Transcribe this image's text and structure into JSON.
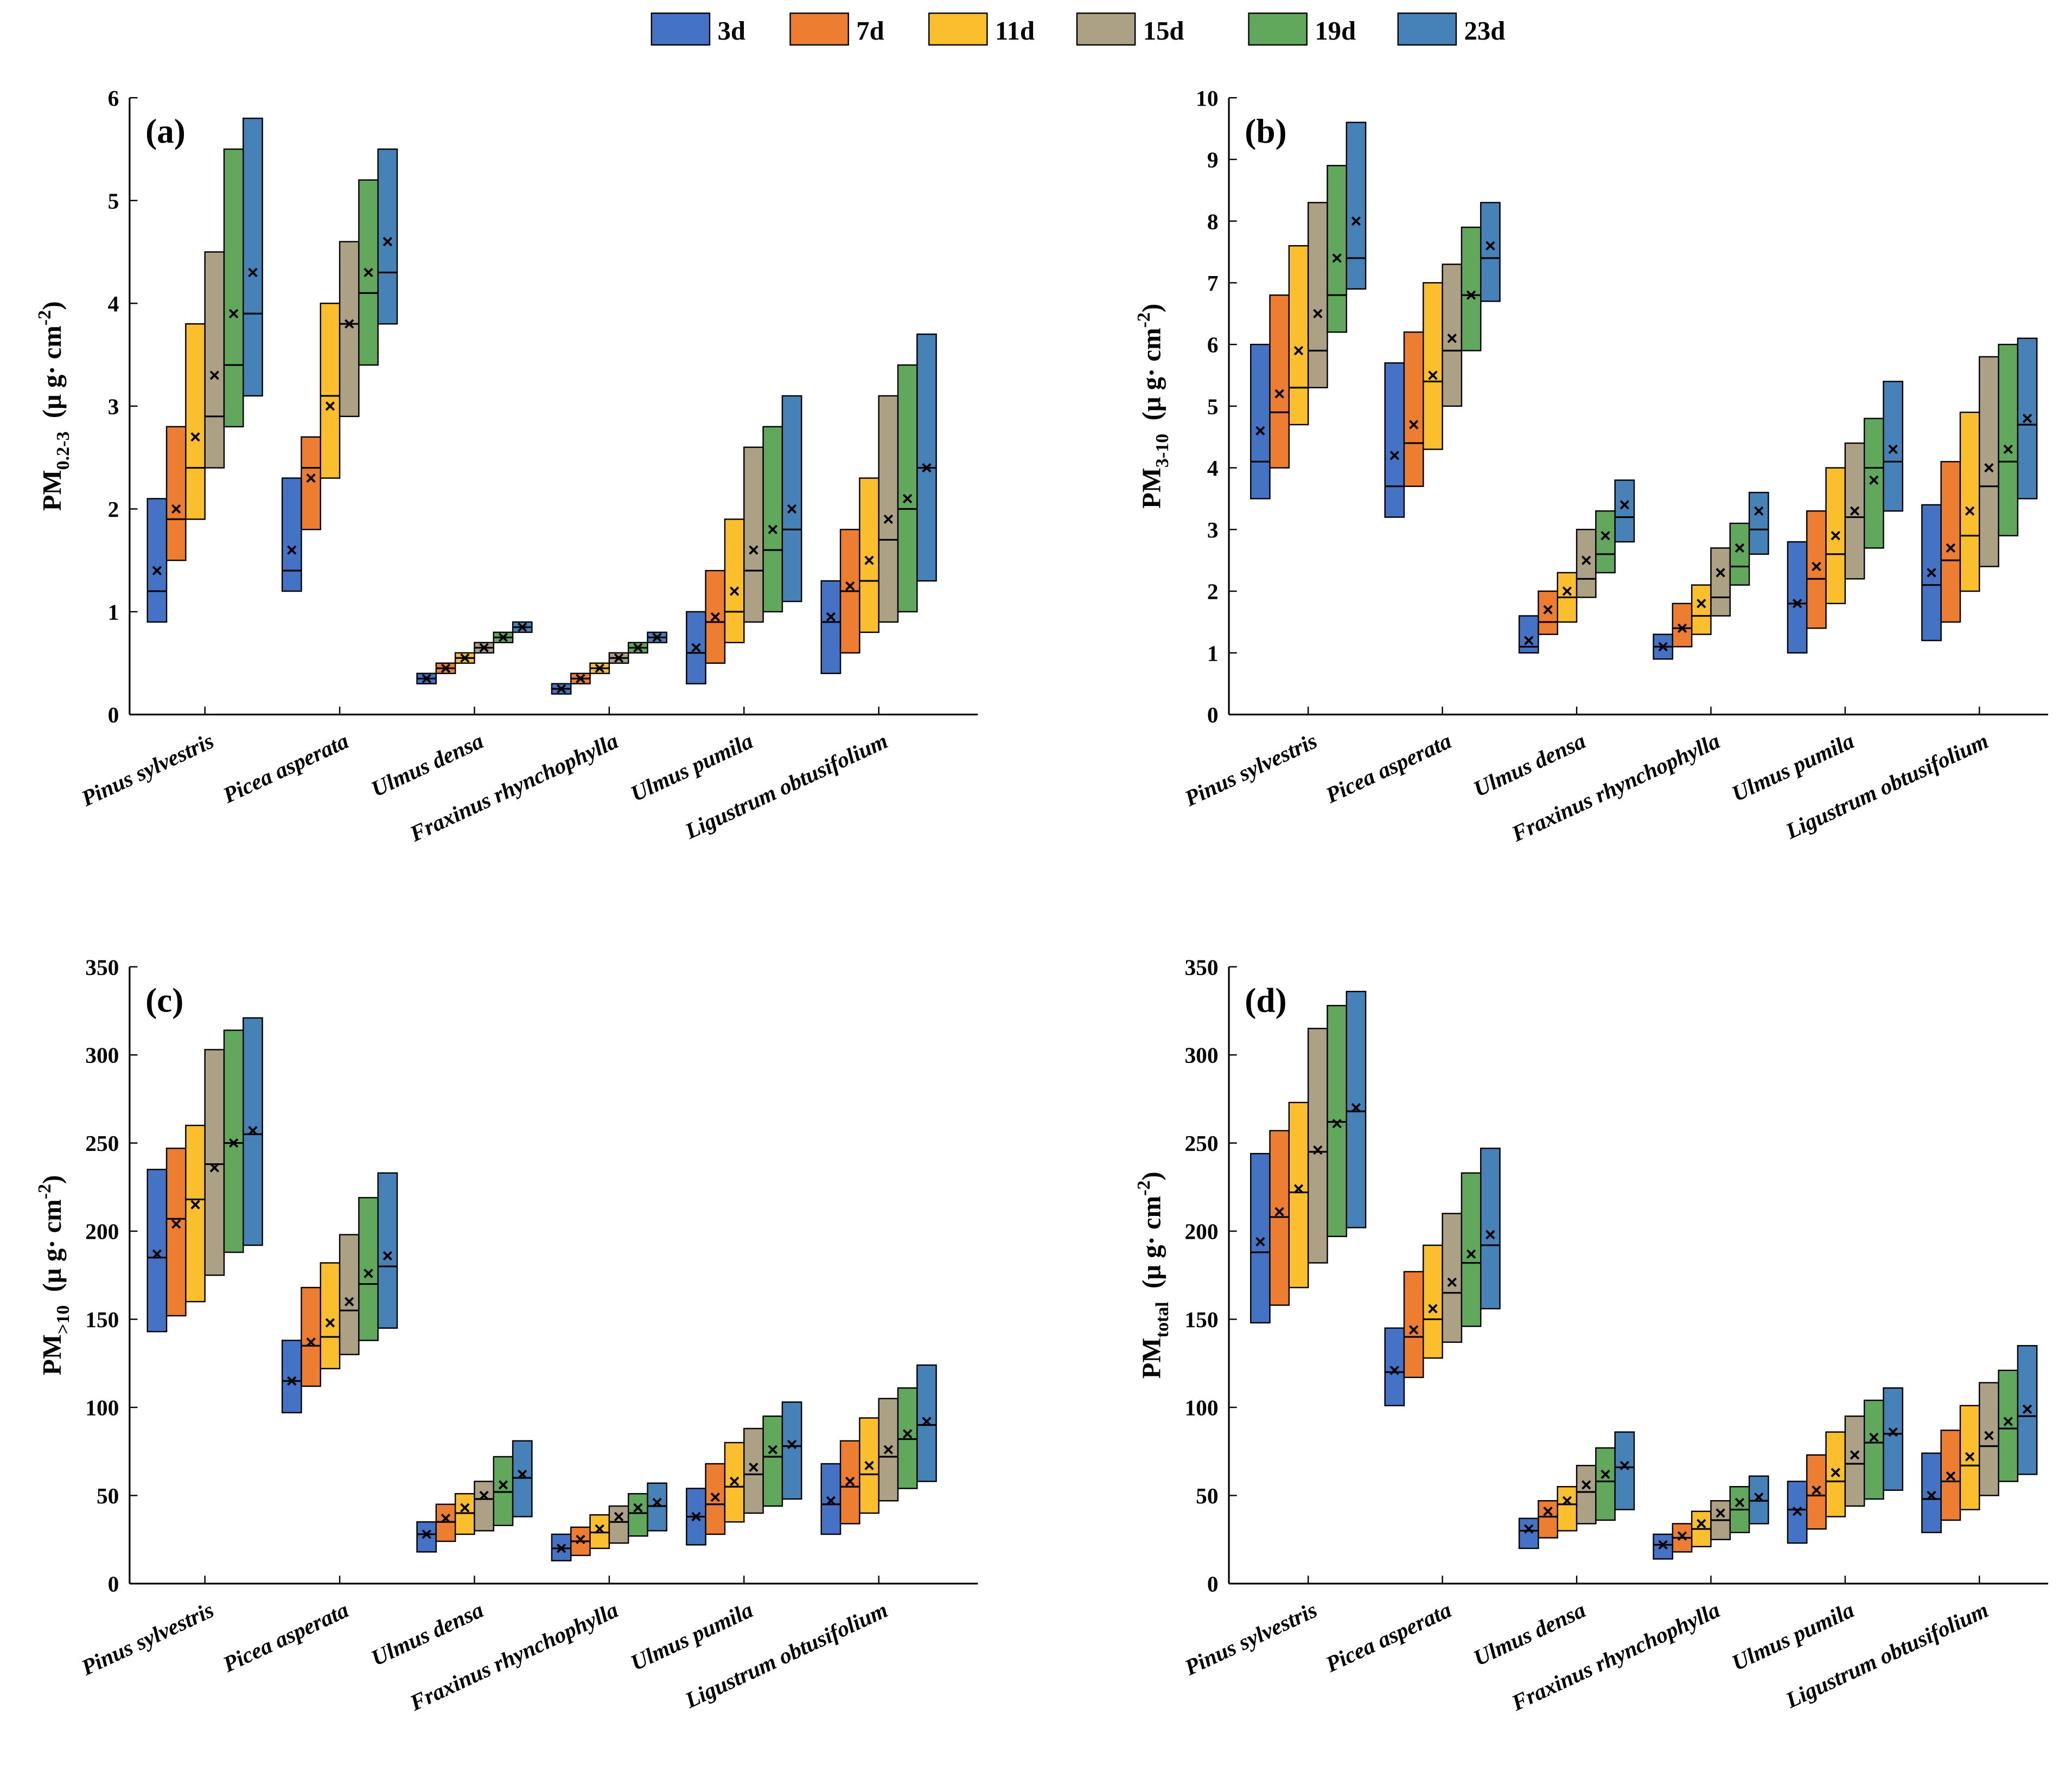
{
  "legend": [
    {
      "label": "3d",
      "color": "#4472C4"
    },
    {
      "label": "7d",
      "color": "#ED7D31"
    },
    {
      "label": "11d",
      "color": "#FBBF2D"
    },
    {
      "label": "15d",
      "color": "#ACA085"
    },
    {
      "label": "19d",
      "color": "#62A85C"
    },
    {
      "label": "23d",
      "color": "#4682B8"
    }
  ],
  "chart_data": [
    {
      "type": "box",
      "panel_label": "(a)",
      "ylabel": {
        "main": "PM",
        "sub": "0.2-3",
        "unit": "(μ g· cm",
        "sup": "-2",
        "close": ")"
      },
      "ylim": [
        0,
        6
      ],
      "yticks": [
        0,
        1,
        2,
        3,
        4,
        5,
        6
      ],
      "categories": [
        "Pinus sylvestris",
        "Picea asperata",
        "Ulmus densa",
        "Fraxinus rhynchophylla",
        "Ulmus pumila",
        "Ligustrum obtusifolium"
      ],
      "series": [
        {
          "name": "3d",
          "min": [
            0.9,
            1.2,
            0.3,
            0.2,
            0.3,
            0.4
          ],
          "max": [
            2.1,
            2.3,
            0.4,
            0.3,
            1.0,
            1.3
          ],
          "median": [
            1.2,
            1.4,
            0.35,
            0.25,
            0.6,
            0.9
          ],
          "mean": [
            1.4,
            1.6,
            0.35,
            0.25,
            0.65,
            0.95
          ]
        },
        {
          "name": "7d",
          "min": [
            1.5,
            1.8,
            0.4,
            0.3,
            0.5,
            0.6
          ],
          "max": [
            2.8,
            2.7,
            0.5,
            0.4,
            1.4,
            1.8
          ],
          "median": [
            1.9,
            2.4,
            0.45,
            0.35,
            0.9,
            1.2
          ],
          "mean": [
            2.0,
            2.3,
            0.45,
            0.35,
            0.95,
            1.25
          ]
        },
        {
          "name": "11d",
          "min": [
            1.9,
            2.3,
            0.5,
            0.4,
            0.7,
            0.8
          ],
          "max": [
            3.8,
            4.0,
            0.6,
            0.5,
            1.9,
            2.3
          ],
          "median": [
            2.4,
            3.1,
            0.55,
            0.45,
            1.0,
            1.3
          ],
          "mean": [
            2.7,
            3.0,
            0.55,
            0.45,
            1.2,
            1.5
          ]
        },
        {
          "name": "15d",
          "min": [
            2.4,
            2.9,
            0.6,
            0.5,
            0.9,
            0.9
          ],
          "max": [
            4.5,
            4.6,
            0.7,
            0.6,
            2.6,
            3.1
          ],
          "median": [
            2.9,
            3.8,
            0.65,
            0.55,
            1.4,
            1.7
          ],
          "mean": [
            3.3,
            3.8,
            0.65,
            0.55,
            1.6,
            1.9
          ]
        },
        {
          "name": "19d",
          "min": [
            2.8,
            3.4,
            0.7,
            0.6,
            1.0,
            1.0
          ],
          "max": [
            5.5,
            5.2,
            0.8,
            0.7,
            2.8,
            3.4
          ],
          "median": [
            3.4,
            4.1,
            0.75,
            0.65,
            1.6,
            2.0
          ],
          "mean": [
            3.9,
            4.3,
            0.75,
            0.65,
            1.8,
            2.1
          ]
        },
        {
          "name": "23d",
          "min": [
            3.1,
            3.8,
            0.8,
            0.7,
            1.1,
            1.3
          ],
          "max": [
            5.8,
            5.5,
            0.9,
            0.8,
            3.1,
            3.7
          ],
          "median": [
            3.9,
            4.3,
            0.85,
            0.75,
            1.8,
            2.4
          ],
          "mean": [
            4.3,
            4.6,
            0.85,
            0.75,
            2.0,
            2.4
          ]
        }
      ]
    },
    {
      "type": "box",
      "panel_label": "(b)",
      "ylabel": {
        "main": "PM",
        "sub": "3-10",
        "unit": "(μ g· cm",
        "sup": "-2",
        "close": ")"
      },
      "ylim": [
        0,
        10
      ],
      "yticks": [
        0,
        1,
        2,
        3,
        4,
        5,
        6,
        7,
        8,
        9,
        10
      ],
      "categories": [
        "Pinus sylvestris",
        "Picea asperata",
        "Ulmus densa",
        "Fraxinus rhynchophylla",
        "Ulmus pumila",
        "Ligustrum obtusifolium"
      ],
      "series": [
        {
          "name": "3d",
          "min": [
            3.5,
            3.2,
            1.0,
            0.9,
            1.0,
            1.2
          ],
          "max": [
            6.0,
            5.7,
            1.6,
            1.3,
            2.8,
            3.4
          ],
          "median": [
            4.1,
            3.7,
            1.1,
            1.1,
            1.8,
            2.1
          ],
          "mean": [
            4.6,
            4.2,
            1.2,
            1.1,
            1.8,
            2.3
          ]
        },
        {
          "name": "7d",
          "min": [
            4.0,
            3.7,
            1.3,
            1.1,
            1.4,
            1.5
          ],
          "max": [
            6.8,
            6.2,
            2.0,
            1.8,
            3.3,
            4.1
          ],
          "median": [
            4.9,
            4.4,
            1.5,
            1.4,
            2.2,
            2.5
          ],
          "mean": [
            5.2,
            4.7,
            1.7,
            1.4,
            2.4,
            2.7
          ]
        },
        {
          "name": "11d",
          "min": [
            4.7,
            4.3,
            1.5,
            1.3,
            1.8,
            2.0
          ],
          "max": [
            7.6,
            7.0,
            2.3,
            2.1,
            4.0,
            4.9
          ],
          "median": [
            5.3,
            5.4,
            1.9,
            1.6,
            2.6,
            2.9
          ],
          "mean": [
            5.9,
            5.5,
            2.0,
            1.8,
            2.9,
            3.3
          ]
        },
        {
          "name": "15d",
          "min": [
            5.3,
            5.0,
            1.9,
            1.6,
            2.2,
            2.4
          ],
          "max": [
            8.3,
            7.3,
            3.0,
            2.7,
            4.4,
            5.8
          ],
          "median": [
            5.9,
            5.9,
            2.2,
            1.9,
            3.2,
            3.7
          ],
          "mean": [
            6.5,
            6.1,
            2.5,
            2.3,
            3.3,
            4.0
          ]
        },
        {
          "name": "19d",
          "min": [
            6.2,
            5.9,
            2.3,
            2.1,
            2.7,
            2.9
          ],
          "max": [
            8.9,
            7.9,
            3.3,
            3.1,
            4.8,
            6.0
          ],
          "median": [
            6.8,
            6.8,
            2.6,
            2.4,
            4.0,
            4.1
          ],
          "mean": [
            7.4,
            6.8,
            2.9,
            2.7,
            3.8,
            4.3
          ]
        },
        {
          "name": "23d",
          "min": [
            6.9,
            6.7,
            2.8,
            2.6,
            3.3,
            3.5
          ],
          "max": [
            9.6,
            8.3,
            3.8,
            3.6,
            5.4,
            6.1
          ],
          "median": [
            7.4,
            7.4,
            3.2,
            3.0,
            4.1,
            4.7
          ],
          "mean": [
            8.0,
            7.6,
            3.4,
            3.3,
            4.3,
            4.8
          ]
        }
      ]
    },
    {
      "type": "box",
      "panel_label": "(c)",
      "ylabel": {
        "main": "PM",
        "sub": ">10",
        "unit": "(μ g· cm",
        "sup": "-2",
        "close": ")"
      },
      "ylim": [
        0,
        350
      ],
      "yticks": [
        0,
        50,
        100,
        150,
        200,
        250,
        300,
        350
      ],
      "categories": [
        "Pinus sylvestris",
        "Picea asperata",
        "Ulmus densa",
        "Fraxinus rhynchophylla",
        "Ulmus pumila",
        "Ligustrum obtusifolium"
      ],
      "series": [
        {
          "name": "3d",
          "min": [
            143,
            97,
            18,
            13,
            22,
            28
          ],
          "max": [
            235,
            138,
            35,
            28,
            54,
            68
          ],
          "median": [
            185,
            115,
            28,
            20,
            38,
            45
          ],
          "mean": [
            187,
            115,
            28,
            20,
            38,
            47
          ]
        },
        {
          "name": "7d",
          "min": [
            152,
            112,
            24,
            16,
            28,
            34
          ],
          "max": [
            247,
            168,
            45,
            32,
            68,
            81
          ],
          "median": [
            207,
            135,
            35,
            24,
            45,
            55
          ],
          "mean": [
            204,
            137,
            37,
            25,
            49,
            58
          ]
        },
        {
          "name": "11d",
          "min": [
            160,
            122,
            28,
            20,
            35,
            40
          ],
          "max": [
            260,
            182,
            51,
            39,
            80,
            94
          ],
          "median": [
            218,
            140,
            40,
            29,
            55,
            62
          ],
          "mean": [
            215,
            148,
            43,
            31,
            58,
            67
          ]
        },
        {
          "name": "15d",
          "min": [
            175,
            130,
            30,
            23,
            40,
            47
          ],
          "max": [
            303,
            198,
            58,
            44,
            88,
            105
          ],
          "median": [
            238,
            155,
            48,
            35,
            62,
            72
          ],
          "mean": [
            236,
            160,
            50,
            38,
            66,
            76
          ]
        },
        {
          "name": "19d",
          "min": [
            188,
            138,
            33,
            27,
            44,
            54
          ],
          "max": [
            314,
            219,
            72,
            51,
            95,
            111
          ],
          "median": [
            250,
            170,
            52,
            40,
            72,
            82
          ],
          "mean": [
            250,
            176,
            56,
            43,
            76,
            85
          ]
        },
        {
          "name": "23d",
          "min": [
            192,
            145,
            38,
            30,
            48,
            58
          ],
          "max": [
            321,
            233,
            81,
            57,
            103,
            124
          ],
          "median": [
            255,
            180,
            60,
            44,
            78,
            90
          ],
          "mean": [
            257,
            186,
            62,
            46,
            79,
            92
          ]
        }
      ]
    },
    {
      "type": "box",
      "panel_label": "(d)",
      "ylabel": {
        "main": "PM",
        "sub": "total",
        "unit": "(μ g· cm",
        "sup": "-2",
        "close": ")"
      },
      "ylim": [
        0,
        350
      ],
      "yticks": [
        0,
        50,
        100,
        150,
        200,
        250,
        300,
        350
      ],
      "categories": [
        "Pinus sylvestris",
        "Picea asperata",
        "Ulmus densa",
        "Fraxinus rhynchophylla",
        "Ulmus pumila",
        "Ligustrum obtusifolium"
      ],
      "series": [
        {
          "name": "3d",
          "min": [
            148,
            101,
            20,
            14,
            23,
            29
          ],
          "max": [
            244,
            145,
            37,
            28,
            58,
            74
          ],
          "median": [
            188,
            120,
            30,
            22,
            42,
            48
          ],
          "mean": [
            194,
            121,
            31,
            22,
            41,
            50
          ]
        },
        {
          "name": "7d",
          "min": [
            158,
            117,
            26,
            18,
            31,
            36
          ],
          "max": [
            257,
            177,
            47,
            34,
            73,
            87
          ],
          "median": [
            208,
            140,
            38,
            26,
            50,
            58
          ],
          "mean": [
            211,
            144,
            41,
            27,
            53,
            61
          ]
        },
        {
          "name": "11d",
          "min": [
            168,
            128,
            30,
            21,
            38,
            42
          ],
          "max": [
            273,
            192,
            55,
            41,
            86,
            101
          ],
          "median": [
            222,
            150,
            45,
            31,
            58,
            67
          ],
          "mean": [
            224,
            156,
            47,
            34,
            63,
            72
          ]
        },
        {
          "name": "15d",
          "min": [
            182,
            137,
            34,
            25,
            44,
            50
          ],
          "max": [
            315,
            210,
            67,
            47,
            95,
            114
          ],
          "median": [
            245,
            165,
            52,
            36,
            68,
            78
          ],
          "mean": [
            246,
            171,
            56,
            40,
            73,
            84
          ]
        },
        {
          "name": "19d",
          "min": [
            197,
            146,
            36,
            29,
            48,
            58
          ],
          "max": [
            328,
            233,
            77,
            55,
            104,
            121
          ],
          "median": [
            262,
            182,
            58,
            42,
            80,
            88
          ],
          "mean": [
            261,
            187,
            62,
            46,
            83,
            92
          ]
        },
        {
          "name": "23d",
          "min": [
            202,
            156,
            42,
            34,
            53,
            62
          ],
          "max": [
            336,
            247,
            86,
            61,
            111,
            135
          ],
          "median": [
            268,
            192,
            66,
            47,
            85,
            95
          ],
          "mean": [
            270,
            198,
            67,
            49,
            86,
            99
          ]
        }
      ]
    }
  ]
}
